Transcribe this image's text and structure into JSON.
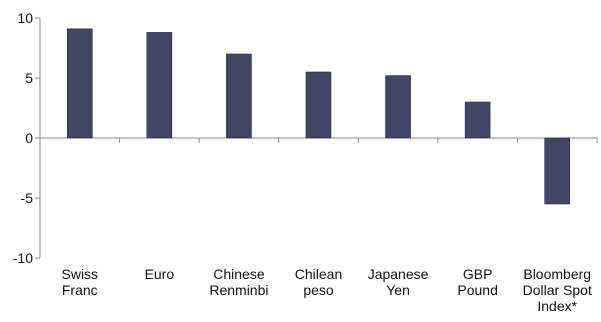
{
  "chart_data": {
    "type": "bar",
    "categories": [
      [
        "Swiss",
        "Franc"
      ],
      [
        "Euro"
      ],
      [
        "Chinese",
        "Renminbi"
      ],
      [
        "Chilean",
        "peso"
      ],
      [
        "Japanese",
        "Yen"
      ],
      [
        "GBP",
        "Pound"
      ],
      [
        "Bloomberg",
        "Dollar Spot",
        "Index*"
      ]
    ],
    "values": [
      9.1,
      8.8,
      7.0,
      5.5,
      5.2,
      3.0,
      -5.5
    ],
    "ylim": [
      -10,
      10
    ],
    "yticks": [
      10,
      5,
      0,
      -5,
      -10
    ],
    "ytick_labels": [
      "10",
      "5",
      "0",
      "-5",
      "-10"
    ],
    "grid": false,
    "bar_color": "#414566",
    "axis_color": "#8a8a8a"
  }
}
